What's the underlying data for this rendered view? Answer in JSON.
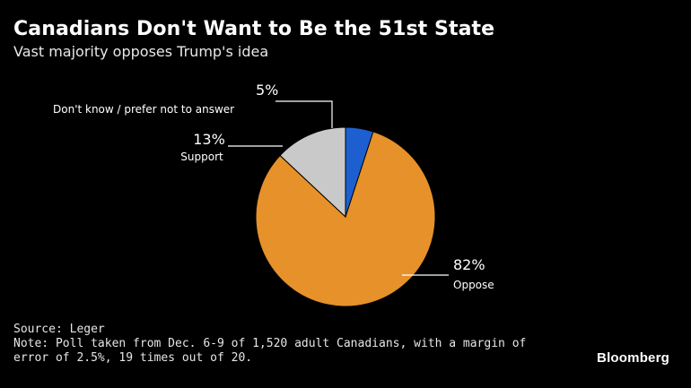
{
  "chart_data": {
    "type": "pie",
    "title": "Canadians Don't Want to Be the 51st State",
    "subtitle": "Vast majority opposes Trump's idea",
    "categories": [
      "Don't know / prefer not to answer",
      "Oppose",
      "Support"
    ],
    "values": [
      5,
      82,
      13
    ],
    "value_labels": [
      "5%",
      "82%",
      "13%"
    ],
    "colors": [
      "#1d5fd1",
      "#e6912a",
      "#c9c9c9"
    ],
    "legend": "none (direct labels with leader lines)"
  },
  "footer": {
    "source": "Source: Leger",
    "note_line1": "Note: Poll taken from Dec. 6-9 of 1,520 adult Canadians, with a margin of",
    "note_line2": "error of 2.5%, 19 times out of 20."
  },
  "brand": "Bloomberg"
}
